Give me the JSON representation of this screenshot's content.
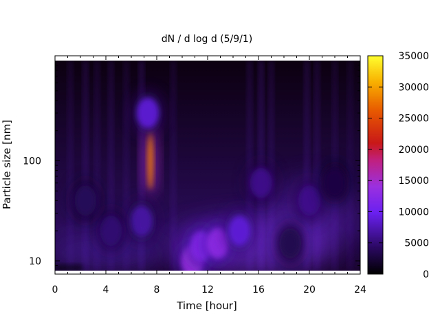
{
  "chart_data": {
    "type": "heatmap",
    "title": "dN / d log d (5/9/1)",
    "xlabel": "Time [hour]",
    "ylabel": "Particle size [nm]",
    "x_range": [
      0,
      24
    ],
    "x_ticks": [
      0,
      4,
      8,
      12,
      16,
      20,
      24
    ],
    "y_scale": "log",
    "y_range": [
      8,
      1000
    ],
    "y_ticks": [
      10,
      100
    ],
    "color_scale": "black-purple-red-yellow",
    "colorbar": {
      "range": [
        0,
        35000
      ],
      "ticks": [
        0,
        5000,
        10000,
        15000,
        20000,
        25000,
        30000,
        35000
      ]
    },
    "features": [
      {
        "x": 7.5,
        "y": 100,
        "value": 28000
      },
      {
        "x": 7.3,
        "y": 300,
        "value": 9000
      },
      {
        "x": 10.8,
        "y": 10,
        "value": 14000
      },
      {
        "x": 11.5,
        "y": 14,
        "value": 12000
      },
      {
        "x": 12.8,
        "y": 15,
        "value": 13000
      },
      {
        "x": 14.5,
        "y": 20,
        "value": 9000
      },
      {
        "x": 16.2,
        "y": 60,
        "value": 6000
      },
      {
        "x": 20.0,
        "y": 40,
        "value": 6000
      },
      {
        "x": 6.8,
        "y": 25,
        "value": 7000
      },
      {
        "x": 4.4,
        "y": 20,
        "value": 5000
      },
      {
        "x": 2.4,
        "y": 40,
        "value": 4000
      },
      {
        "x": 18.5,
        "y": 15,
        "value": 3500
      },
      {
        "x": 22.0,
        "y": 60,
        "value": 3000
      }
    ]
  },
  "colors": {
    "dark": "#0a0008",
    "base": "#1a0530",
    "purple": "#5a20d0",
    "violet": "#9a30f0",
    "red": "#c41010",
    "orange": "#f07800",
    "yellow": "#ffff30"
  }
}
